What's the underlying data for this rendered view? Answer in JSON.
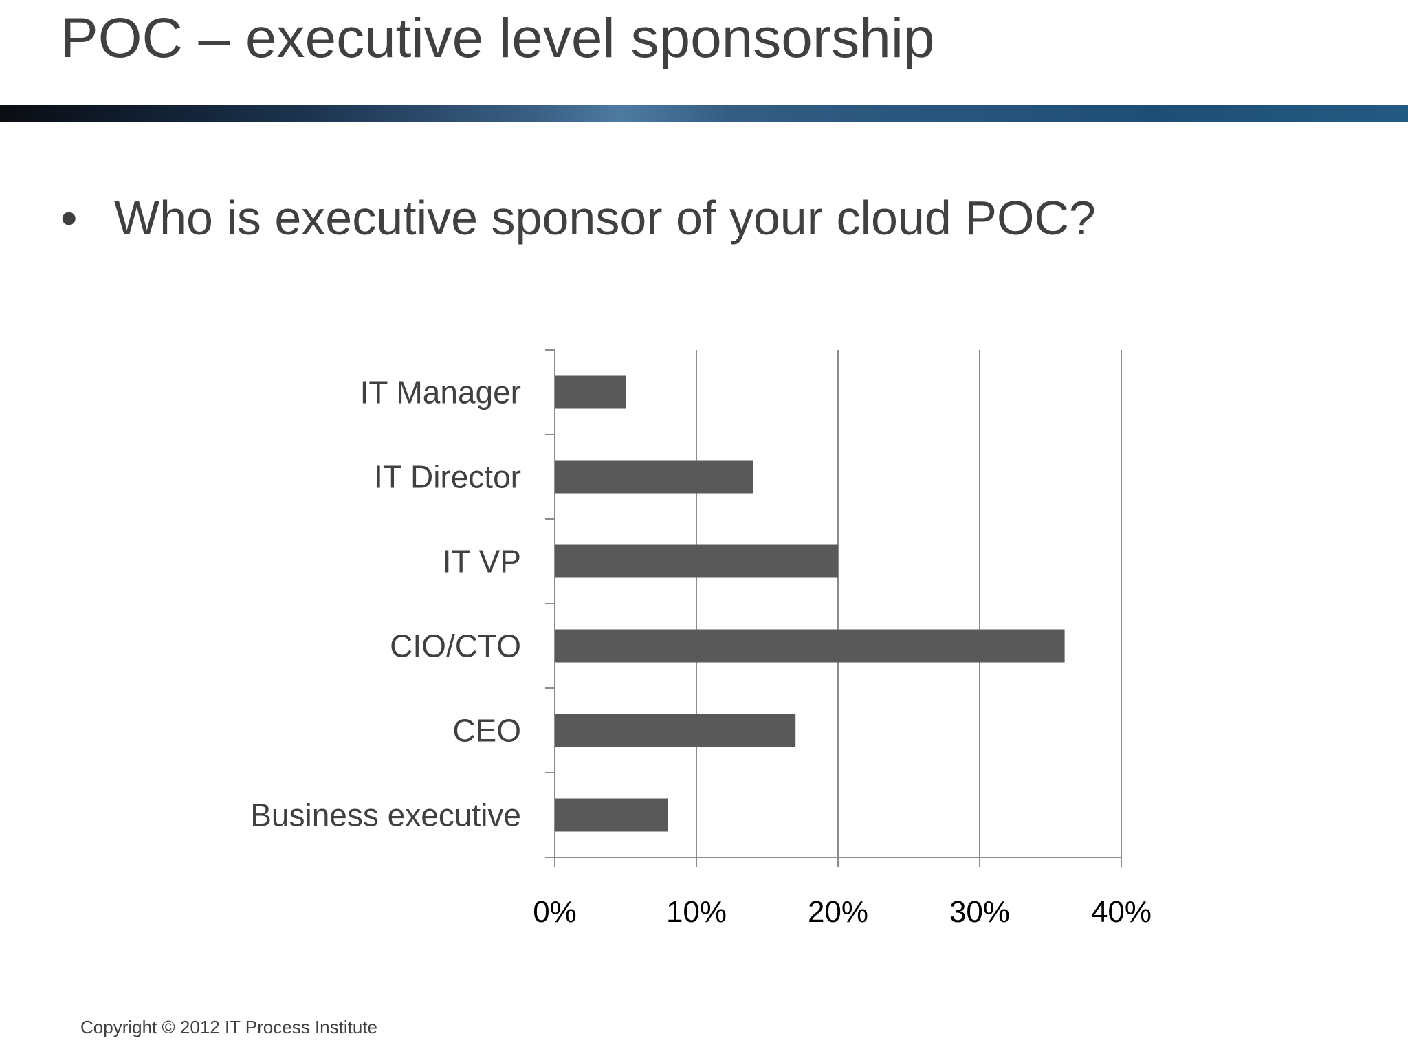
{
  "slide": {
    "title": "POC – executive level sponsorship",
    "bullet_text": "Who is executive sponsor of your cloud POC?",
    "footer": "Copyright © 2012 IT Process Institute"
  },
  "colors": {
    "bar": "#595959",
    "grid": "#8c8c8c",
    "text": "#404040"
  },
  "chart_data": {
    "type": "bar",
    "orientation": "horizontal",
    "categories": [
      "IT Manager",
      "IT Director",
      "IT VP",
      "CIO/CTO",
      "CEO",
      "Business executive"
    ],
    "values": [
      5,
      14,
      20,
      36,
      17,
      8
    ],
    "xlim": [
      0,
      40
    ],
    "x_ticks": [
      0,
      10,
      20,
      30,
      40
    ],
    "x_tick_labels": [
      "0%",
      "10%",
      "20%",
      "30%",
      "40%"
    ],
    "grid": true,
    "legend": "none"
  }
}
